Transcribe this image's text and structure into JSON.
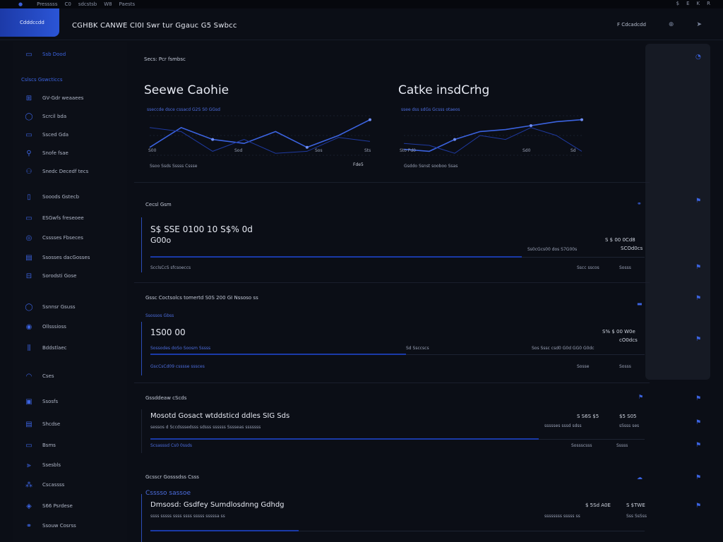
{
  "topbar": {
    "items": [
      "Presssss",
      "C0",
      "sdcstsb",
      "W8",
      "Paests"
    ],
    "right": [
      "$",
      "E",
      "K",
      "R"
    ]
  },
  "logo": {
    "label": "Cdddccdd"
  },
  "header": {
    "title": "CGHBK CANWE CI0I Swr tur Ggauc G5 Swbcc",
    "right_label": "F Cdcadcdd",
    "right_icon_1": "⊕",
    "right_icon_2": "➤"
  },
  "sidebar": {
    "items": [
      {
        "label": "Ssb Dood",
        "icon": "▭",
        "active": true
      },
      {
        "label": "Cslscs Gswcticcs",
        "icon": "",
        "section": true
      },
      {
        "label": "GV-Gdr weaaees",
        "icon": "⊞"
      },
      {
        "label": "Scrcil bda",
        "icon": "◯"
      },
      {
        "label": "Ssced Gda",
        "icon": "▭"
      },
      {
        "label": "Snofe fsae",
        "icon": "⚲"
      },
      {
        "label": "Snedc Decedf tecs",
        "icon": "⚇"
      },
      {
        "label": "Sooods Gstecb",
        "icon": "▯"
      },
      {
        "label": "ESGwfs freseoee",
        "icon": "▭"
      },
      {
        "label": "Csssses Fbseces",
        "icon": "◎"
      },
      {
        "label": "Ssosses dacGosses",
        "icon": "▤"
      },
      {
        "label": "Sorodsti Gose",
        "icon": "⊟"
      },
      {
        "label": "Ssnnsr Gsuss",
        "icon": "◯"
      },
      {
        "label": "Ollsssioss",
        "icon": "◉"
      },
      {
        "label": "Bddstlaec",
        "icon": "⫼"
      },
      {
        "label": "Cses",
        "icon": "◠"
      },
      {
        "label": "Ssosfs",
        "icon": "▣"
      },
      {
        "label": "Shcdse",
        "icon": "▤"
      },
      {
        "label": "Bsms",
        "icon": "▭"
      },
      {
        "label": "Ssesbls",
        "icon": "⫸"
      },
      {
        "label": "Cscassss",
        "icon": "⁂"
      },
      {
        "label": "S66 Psrdese",
        "icon": "◈"
      },
      {
        "label": "Ssouw Cosrss",
        "icon": "⚭"
      }
    ]
  },
  "main": {
    "breadcrumb": "Secs: Pcr fsmbsc",
    "chart1": {
      "title": "Seewe Caohie",
      "sub": "sseccde dsce cssacd G2S S0 GGsd",
      "xl": "S00",
      "xm": "Sod",
      "xr1": "Sos",
      "xr2": "Sts",
      "foot": "Ssoo Ssds Sssss Cssse",
      "foot_right": "Fde5"
    },
    "chart2": {
      "title": "Catke insdCrhg",
      "sub": "ssee dss sdGs Gcsss otaeos",
      "xl": "Sto Pd0",
      "xm": "Sd0",
      "xr": "Sd",
      "foot": "Gsddo Ssnst sooboo Ssas"
    },
    "card1": {
      "section": "Cecsl Gsm",
      "big": "S$ SSE 0100 10 S$% 0d",
      "big2": "G00o",
      "r1": "S $ 00 0Cd8",
      "r2": "SCOd0cs",
      "mid": "Ss0cGcs00 dos S7G00s",
      "foot": "ScclsCcS sfcsoeccs",
      "foot_r1": "Sscc sscos",
      "foot_r2": "Sosss"
    },
    "card2": {
      "section": "Gssc Coctsolcs tomertd S0S 200 GI Nssoso ss",
      "sub": "Ssossos Gbss",
      "big": "1S00 00",
      "sub2": "Sossodes doSo Soosm Sssss",
      "r1": "S% $ 00 W0e",
      "r2": "cO0dcs",
      "mid1": "Sd Ssccscs",
      "mid2": "Sos Sssc csd0 G0d GG0 G0dc",
      "foot": "GscCsCd09 csssse sssces",
      "foot_r1": "Sosse",
      "foot_r2": "Sosss"
    },
    "card3": {
      "section": "Gssddeaw cScds",
      "big": "Mosotd Gosact wtddsticd ddles SIG Sds",
      "sub": "sessos d Sccdsssedsss sdsss ssssss Sssseas sssssss",
      "r1": "S S6S $5",
      "r2": "$5 S05",
      "mid": "ssssses sssd sdss",
      "mid2": "sSsss ses",
      "foot": "Scsasssd Cs0 0ssds",
      "foot_r1": "Sossscsss",
      "foot_r2": "Sssss"
    },
    "card4": {
      "section": "Gcsscr Gosssdss Csss",
      "sub": "Csssso sassoe",
      "big": "Dmsosd: Gsdfey Sumdlosdnng Gdhdg",
      "sub2": "ssss sssss ssss ssss sssss sssssa ss",
      "r1": "$ 5Sd A0E",
      "r2": "S $TWE",
      "mid": "ssssssss sssss ss",
      "mid2": "Sss SsSss"
    }
  },
  "right": {
    "icons": [
      "◔",
      "⚑",
      "⚑",
      "⚑",
      "⚑",
      "⚑",
      "⚑",
      "⚑",
      "⚑",
      "⚑"
    ]
  },
  "chart_data": [
    {
      "type": "line",
      "title": "Seewe Caohie",
      "x": [
        0,
        1,
        2,
        3,
        4,
        5,
        6,
        7
      ],
      "series": [
        {
          "values": [
            4,
            14,
            8,
            6,
            12,
            4,
            10,
            18
          ]
        },
        {
          "values": [
            14,
            12,
            2,
            8,
            1,
            2,
            9,
            7
          ]
        }
      ],
      "ylim": [
        0,
        20
      ]
    },
    {
      "type": "line",
      "title": "Catke insdCrhg",
      "x": [
        0,
        1,
        2,
        3,
        4,
        5,
        6,
        7
      ],
      "series": [
        {
          "values": [
            3,
            2,
            8,
            12,
            13,
            15,
            17,
            18
          ]
        },
        {
          "values": [
            6,
            5,
            1,
            10,
            8,
            14,
            10,
            2
          ]
        }
      ],
      "ylim": [
        0,
        20
      ]
    }
  ]
}
